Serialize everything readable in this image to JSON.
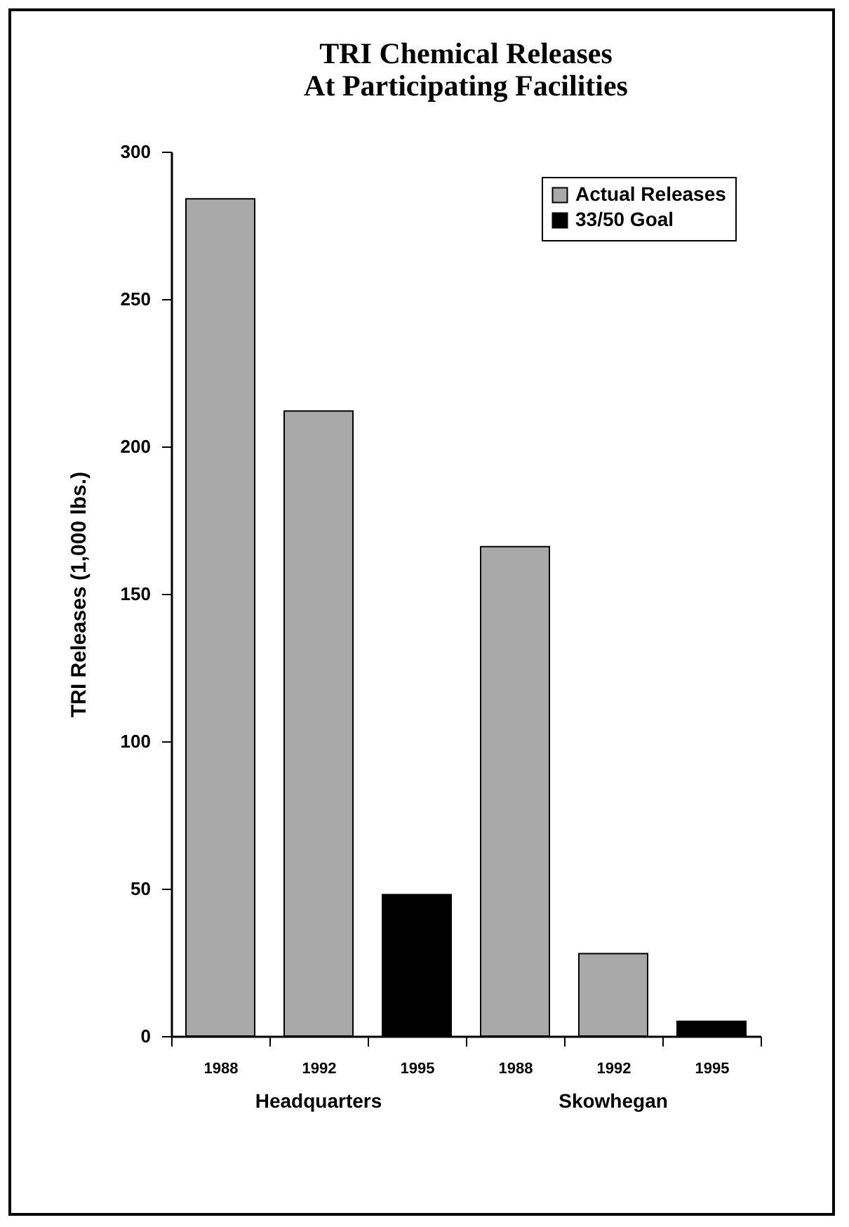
{
  "chart_data": {
    "type": "bar",
    "title": "TRI Chemical Releases\nAt Participating Facilities",
    "ylabel": "TRI Releases (1,000 lbs.)",
    "categories": [
      "1988",
      "1992",
      "1995",
      "1988",
      "1992",
      "1995"
    ],
    "series": [
      {
        "name": "Actual Releases",
        "color": "#a9a9a9",
        "values": [
          284,
          212,
          null,
          166,
          28,
          null
        ]
      },
      {
        "name": "33/50 Goal",
        "color": "#000000",
        "values": [
          null,
          null,
          48,
          null,
          null,
          5
        ]
      }
    ],
    "annotations": [
      "Headquarters",
      "Skowhegan"
    ],
    "ylim": [
      0,
      300
    ],
    "yticks": [
      0,
      50,
      100,
      150,
      200,
      250,
      300
    ],
    "grid": false,
    "legend": "top right"
  }
}
